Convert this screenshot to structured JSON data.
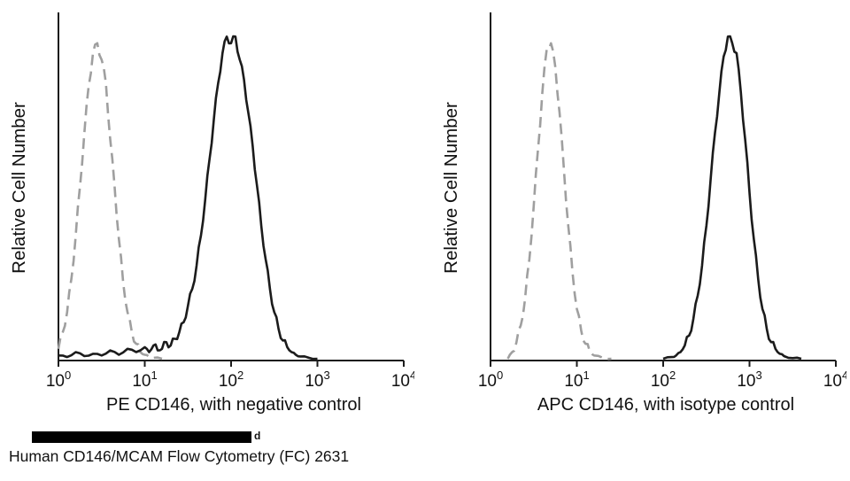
{
  "page": {
    "background": "#ffffff"
  },
  "footer": {
    "caption": "Human CD146/MCAM Flow Cytometry (FC) 2631",
    "redacted_bar": true,
    "redacted_visible_text": "d"
  },
  "colors": {
    "axis": "#1c1c1c",
    "control_curve": "#9f9f9f",
    "marker_curve": "#1b1b1b"
  },
  "chart_data": [
    {
      "type": "line",
      "subtype": "flow-cytometry-histogram",
      "title": "",
      "xlabel": "PE  CD146,  with negative control",
      "ylabel": "Relative Cell Number",
      "x_scale": "log10",
      "xlim_log": [
        0,
        4
      ],
      "ylim": [
        0,
        1
      ],
      "grid": false,
      "legend": null,
      "x_tick_labels": [
        "10^0",
        "10^1",
        "10^2",
        "10^3",
        "10^4"
      ],
      "x_tick_exponents": [
        "0",
        "1",
        "2",
        "3",
        "4"
      ],
      "series": [
        {
          "name": "negative control",
          "style": "dashed",
          "color": "#9f9f9f",
          "points": [
            [
              0.0,
              0.03
            ],
            [
              0.05,
              0.08
            ],
            [
              0.1,
              0.14
            ],
            [
              0.15,
              0.24
            ],
            [
              0.2,
              0.37
            ],
            [
              0.25,
              0.52
            ],
            [
              0.3,
              0.68
            ],
            [
              0.35,
              0.82
            ],
            [
              0.4,
              0.92
            ],
            [
              0.45,
              0.95
            ],
            [
              0.5,
              0.9
            ],
            [
              0.55,
              0.83
            ],
            [
              0.6,
              0.66
            ],
            [
              0.65,
              0.52
            ],
            [
              0.7,
              0.36
            ],
            [
              0.75,
              0.23
            ],
            [
              0.8,
              0.14
            ],
            [
              0.85,
              0.08
            ],
            [
              0.9,
              0.045
            ],
            [
              0.95,
              0.02
            ],
            [
              1.0,
              0.012
            ],
            [
              1.05,
              0.006
            ],
            [
              1.1,
              0.003
            ],
            [
              1.2,
              0.0
            ]
          ]
        },
        {
          "name": "PE CD146",
          "style": "solid",
          "color": "#1b1b1b",
          "points": [
            [
              0.0,
              0.01
            ],
            [
              0.1,
              0.005
            ],
            [
              0.2,
              0.02
            ],
            [
              0.3,
              0.008
            ],
            [
              0.4,
              0.015
            ],
            [
              0.5,
              0.01
            ],
            [
              0.6,
              0.025
            ],
            [
              0.7,
              0.012
            ],
            [
              0.8,
              0.03
            ],
            [
              0.9,
              0.02
            ],
            [
              1.0,
              0.035
            ],
            [
              1.05,
              0.02
            ],
            [
              1.1,
              0.04
            ],
            [
              1.15,
              0.025
            ],
            [
              1.2,
              0.03
            ],
            [
              1.25,
              0.05
            ],
            [
              1.3,
              0.04
            ],
            [
              1.35,
              0.06
            ],
            [
              1.4,
              0.08
            ],
            [
              1.45,
              0.11
            ],
            [
              1.5,
              0.16
            ],
            [
              1.55,
              0.21
            ],
            [
              1.6,
              0.28
            ],
            [
              1.65,
              0.37
            ],
            [
              1.7,
              0.48
            ],
            [
              1.75,
              0.6
            ],
            [
              1.8,
              0.72
            ],
            [
              1.85,
              0.83
            ],
            [
              1.9,
              0.92
            ],
            [
              1.95,
              0.97
            ],
            [
              2.0,
              0.95
            ],
            [
              2.05,
              0.97
            ],
            [
              2.1,
              0.9
            ],
            [
              2.15,
              0.84
            ],
            [
              2.2,
              0.74
            ],
            [
              2.25,
              0.64
            ],
            [
              2.3,
              0.52
            ],
            [
              2.35,
              0.4
            ],
            [
              2.4,
              0.3
            ],
            [
              2.45,
              0.21
            ],
            [
              2.5,
              0.14
            ],
            [
              2.55,
              0.09
            ],
            [
              2.6,
              0.055
            ],
            [
              2.65,
              0.035
            ],
            [
              2.7,
              0.02
            ],
            [
              2.75,
              0.012
            ],
            [
              2.8,
              0.007
            ],
            [
              2.9,
              0.003
            ],
            [
              3.0,
              0.0
            ]
          ]
        }
      ]
    },
    {
      "type": "line",
      "subtype": "flow-cytometry-histogram",
      "title": "",
      "xlabel": "APC CD146, with isotype control",
      "ylabel": "Relative Cell Number",
      "x_scale": "log10",
      "xlim_log": [
        0,
        4
      ],
      "ylim": [
        0,
        1
      ],
      "grid": false,
      "legend": null,
      "x_tick_labels": [
        "10^0",
        "10^1",
        "10^2",
        "10^3",
        "10^4"
      ],
      "x_tick_exponents": [
        "0",
        "1",
        "2",
        "3",
        "4"
      ],
      "series": [
        {
          "name": "isotype control",
          "style": "dashed",
          "color": "#9f9f9f",
          "points": [
            [
              0.2,
              0.0
            ],
            [
              0.25,
              0.02
            ],
            [
              0.3,
              0.05
            ],
            [
              0.35,
              0.1
            ],
            [
              0.4,
              0.18
            ],
            [
              0.45,
              0.3
            ],
            [
              0.5,
              0.46
            ],
            [
              0.55,
              0.63
            ],
            [
              0.6,
              0.8
            ],
            [
              0.65,
              0.93
            ],
            [
              0.7,
              0.95
            ],
            [
              0.75,
              0.88
            ],
            [
              0.8,
              0.74
            ],
            [
              0.85,
              0.57
            ],
            [
              0.9,
              0.4
            ],
            [
              0.95,
              0.26
            ],
            [
              1.0,
              0.15
            ],
            [
              1.05,
              0.085
            ],
            [
              1.1,
              0.045
            ],
            [
              1.15,
              0.022
            ],
            [
              1.2,
              0.01
            ],
            [
              1.3,
              0.003
            ],
            [
              1.4,
              0.0
            ]
          ]
        },
        {
          "name": "APC CD146",
          "style": "solid",
          "color": "#1b1b1b",
          "points": [
            [
              2.0,
              0.0
            ],
            [
              2.1,
              0.005
            ],
            [
              2.15,
              0.01
            ],
            [
              2.2,
              0.02
            ],
            [
              2.25,
              0.04
            ],
            [
              2.3,
              0.07
            ],
            [
              2.35,
              0.12
            ],
            [
              2.4,
              0.19
            ],
            [
              2.45,
              0.28
            ],
            [
              2.5,
              0.4
            ],
            [
              2.55,
              0.54
            ],
            [
              2.6,
              0.68
            ],
            [
              2.65,
              0.8
            ],
            [
              2.7,
              0.91
            ],
            [
              2.75,
              0.97
            ],
            [
              2.8,
              0.95
            ],
            [
              2.85,
              0.92
            ],
            [
              2.9,
              0.8
            ],
            [
              2.95,
              0.66
            ],
            [
              3.0,
              0.5
            ],
            [
              3.05,
              0.36
            ],
            [
              3.1,
              0.24
            ],
            [
              3.15,
              0.15
            ],
            [
              3.2,
              0.09
            ],
            [
              3.25,
              0.05
            ],
            [
              3.3,
              0.03
            ],
            [
              3.35,
              0.015
            ],
            [
              3.4,
              0.008
            ],
            [
              3.5,
              0.002
            ],
            [
              3.6,
              0.0
            ]
          ]
        }
      ]
    }
  ]
}
